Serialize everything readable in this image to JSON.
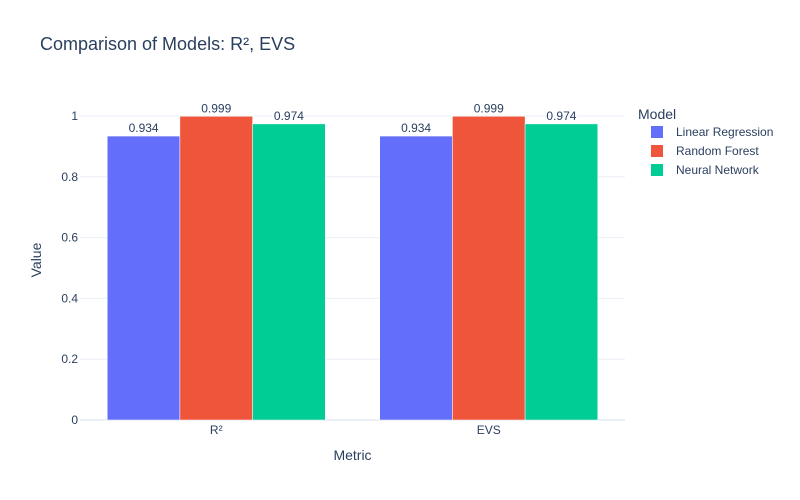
{
  "chart_data": {
    "type": "bar",
    "title": "Comparison of Models: R², EVS",
    "xlabel": "Metric",
    "ylabel": "Value",
    "categories": [
      "R²",
      "EVS"
    ],
    "series": [
      {
        "name": "Linear Regression",
        "values": [
          0.934,
          0.934
        ],
        "labels": [
          "0.934",
          "0.934"
        ],
        "color": "#636efa"
      },
      {
        "name": "Random Forest",
        "values": [
          0.999,
          0.999
        ],
        "labels": [
          "0.999",
          "0.999"
        ],
        "color": "#ef553b"
      },
      {
        "name": "Neural Network",
        "values": [
          0.974,
          0.974
        ],
        "labels": [
          "0.974",
          "0.974"
        ],
        "color": "#00cc96"
      }
    ],
    "ylim": [
      0,
      1.0
    ],
    "yticks": [
      0,
      0.2,
      0.4,
      0.6,
      0.8,
      1
    ],
    "ytick_labels": [
      "0",
      "0.2",
      "0.4",
      "0.6",
      "0.8",
      "1"
    ],
    "grid": true,
    "legend": {
      "title": "Model",
      "position": "right"
    }
  }
}
